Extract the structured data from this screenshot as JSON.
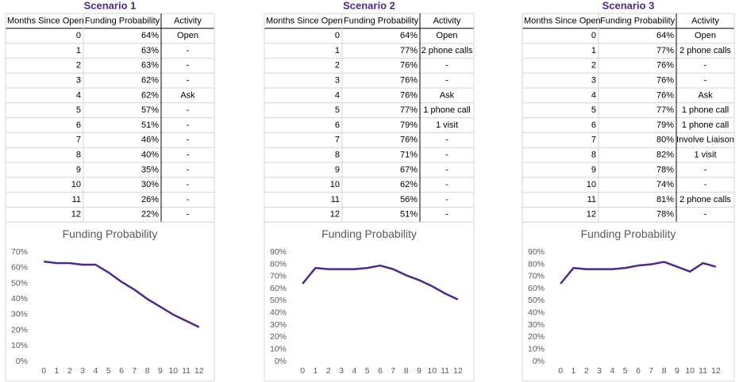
{
  "scenarios": [
    {
      "title": "Scenario 1",
      "table": {
        "header": [
          "Months Since Open",
          "Funding Probability",
          "Activity"
        ],
        "rows": [
          [
            0,
            "64%",
            "Open"
          ],
          [
            1,
            "63%",
            "-"
          ],
          [
            2,
            "63%",
            "-"
          ],
          [
            3,
            "62%",
            "-"
          ],
          [
            4,
            "62%",
            "Ask"
          ],
          [
            5,
            "57%",
            "-"
          ],
          [
            6,
            "51%",
            "-"
          ],
          [
            7,
            "46%",
            "-"
          ],
          [
            8,
            "40%",
            "-"
          ],
          [
            9,
            "35%",
            "-"
          ],
          [
            10,
            "30%",
            "-"
          ],
          [
            11,
            "26%",
            "-"
          ],
          [
            12,
            "22%",
            "-"
          ]
        ]
      }
    },
    {
      "title": "Scenario 2",
      "table": {
        "header": [
          "Months Since Open",
          "Funding Probability",
          "Activity"
        ],
        "rows": [
          [
            0,
            "64%",
            "Open"
          ],
          [
            1,
            "77%",
            "2 phone calls"
          ],
          [
            2,
            "76%",
            "-"
          ],
          [
            3,
            "76%",
            "-"
          ],
          [
            4,
            "76%",
            "Ask"
          ],
          [
            5,
            "77%",
            "1 phone call"
          ],
          [
            6,
            "79%",
            "1 visit"
          ],
          [
            7,
            "76%",
            "-"
          ],
          [
            8,
            "71%",
            "-"
          ],
          [
            9,
            "67%",
            "-"
          ],
          [
            10,
            "62%",
            "-"
          ],
          [
            11,
            "56%",
            "-"
          ],
          [
            12,
            "51%",
            "-"
          ]
        ]
      }
    },
    {
      "title": "Scenario 3",
      "table": {
        "header": [
          "Months Since Open",
          "Funding Probability",
          "Activity"
        ],
        "rows": [
          [
            0,
            "64%",
            "Open"
          ],
          [
            1,
            "77%",
            "2 phone calls"
          ],
          [
            2,
            "76%",
            "-"
          ],
          [
            3,
            "76%",
            "-"
          ],
          [
            4,
            "76%",
            "Ask"
          ],
          [
            5,
            "77%",
            "1 phone call"
          ],
          [
            6,
            "79%",
            "1 phone call"
          ],
          [
            7,
            "80%",
            "Involve Liaison"
          ],
          [
            8,
            "82%",
            "1 visit"
          ],
          [
            9,
            "78%",
            "-"
          ],
          [
            10,
            "74%",
            "-"
          ],
          [
            11,
            "81%",
            "2 phone calls"
          ],
          [
            12,
            "78%",
            "-"
          ]
        ]
      }
    }
  ],
  "chart_data": [
    {
      "type": "line",
      "title": "Funding Probability",
      "categories": [
        "0",
        "1",
        "2",
        "3",
        "4",
        "5",
        "6",
        "7",
        "8",
        "9",
        "10",
        "11",
        "12"
      ],
      "series": [
        {
          "color": "#4e2a8e",
          "values": [
            64,
            63,
            63,
            62,
            62,
            57,
            51,
            46,
            40,
            35,
            30,
            26,
            22
          ]
        }
      ],
      "ylim": [
        0,
        70
      ],
      "yticks": [
        {
          "value": 0,
          "label": "0%"
        },
        {
          "value": 10,
          "label": "10%"
        },
        {
          "value": 20,
          "label": "20%"
        },
        {
          "value": 30,
          "label": "30%"
        },
        {
          "value": 40,
          "label": "40%"
        },
        {
          "value": 50,
          "label": "50%"
        },
        {
          "value": 60,
          "label": "60%"
        },
        {
          "value": 70,
          "label": "70%"
        }
      ]
    },
    {
      "type": "line",
      "title": "Funding Probability",
      "categories": [
        "0",
        "1",
        "2",
        "3",
        "4",
        "5",
        "6",
        "7",
        "8",
        "9",
        "10",
        "11",
        "12"
      ],
      "series": [
        {
          "color": "#4e2a8e",
          "values": [
            64,
            77,
            76,
            76,
            76,
            77,
            79,
            76,
            71,
            67,
            62,
            56,
            51
          ]
        }
      ],
      "ylim": [
        0,
        90
      ],
      "yticks": [
        {
          "value": 0,
          "label": "0%"
        },
        {
          "value": 10,
          "label": "10%"
        },
        {
          "value": 20,
          "label": "20%"
        },
        {
          "value": 30,
          "label": "30%"
        },
        {
          "value": 40,
          "label": "40%"
        },
        {
          "value": 50,
          "label": "50%"
        },
        {
          "value": 60,
          "label": "60%"
        },
        {
          "value": 70,
          "label": "70%"
        },
        {
          "value": 80,
          "label": "80%"
        },
        {
          "value": 90,
          "label": "90%"
        }
      ]
    },
    {
      "type": "line",
      "title": "Funding Probability",
      "categories": [
        "0",
        "1",
        "2",
        "3",
        "4",
        "5",
        "6",
        "7",
        "8",
        "9",
        "10",
        "11",
        "12"
      ],
      "series": [
        {
          "color": "#4e2a8e",
          "values": [
            64,
            77,
            76,
            76,
            76,
            77,
            79,
            80,
            82,
            78,
            74,
            81,
            78
          ]
        }
      ],
      "ylim": [
        0,
        90
      ],
      "yticks": [
        {
          "value": 0,
          "label": "0%"
        },
        {
          "value": 10,
          "label": "10%"
        },
        {
          "value": 20,
          "label": "20%"
        },
        {
          "value": 30,
          "label": "30%"
        },
        {
          "value": 40,
          "label": "40%"
        },
        {
          "value": 50,
          "label": "50%"
        },
        {
          "value": 60,
          "label": "60%"
        },
        {
          "value": 70,
          "label": "70%"
        },
        {
          "value": 80,
          "label": "80%"
        },
        {
          "value": 90,
          "label": "90%"
        }
      ]
    }
  ]
}
